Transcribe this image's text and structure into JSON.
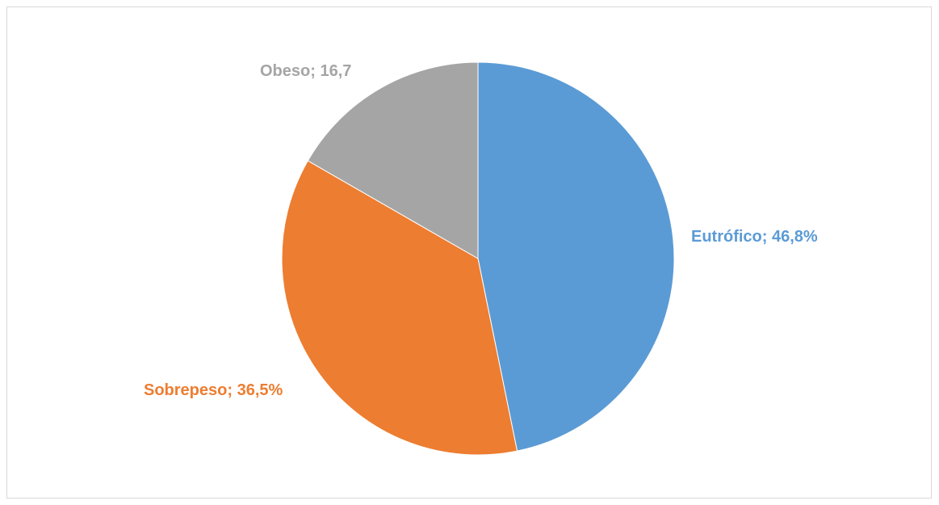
{
  "chart_data": {
    "type": "pie",
    "title": "",
    "slices": [
      {
        "category": "Eutrófico",
        "value": 46.8,
        "label": "Eutrófico; 46,8%",
        "color": "#5b9bd5"
      },
      {
        "category": "Sobrepeso",
        "value": 36.5,
        "label": "Sobrepeso; 36,5%",
        "color": "#ed7d31"
      },
      {
        "category": "Obeso",
        "value": 16.7,
        "label": "Obeso; 16,7",
        "color": "#a5a5a5"
      }
    ],
    "start_angle_deg": 0,
    "direction": "clockwise",
    "legend": "none"
  }
}
